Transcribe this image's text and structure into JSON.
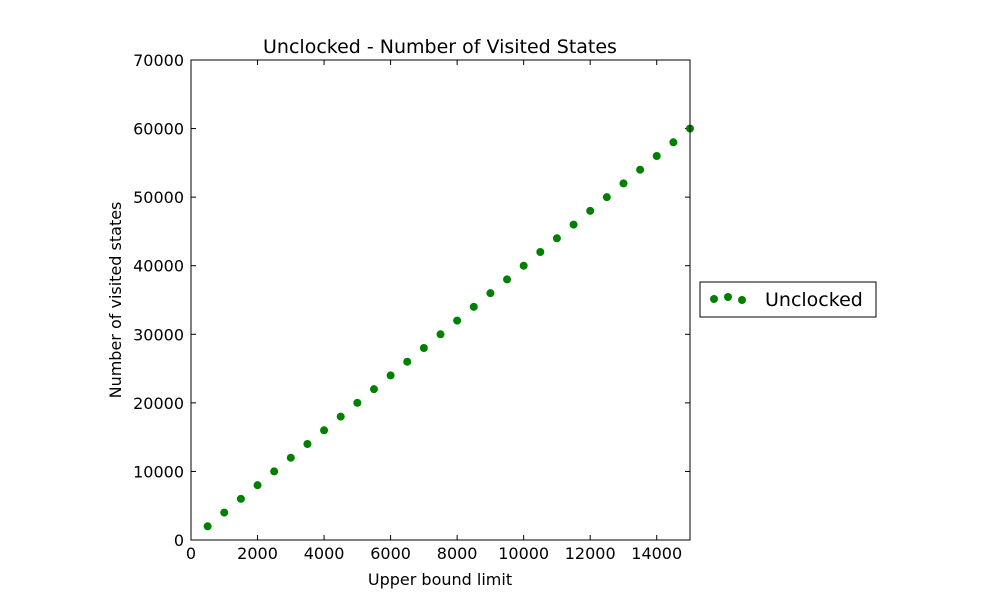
{
  "chart_data": {
    "type": "scatter",
    "title": "Unclocked - Number of Visited States",
    "xlabel": "Upper bound limit",
    "ylabel": "Number of visited states",
    "xlim": [
      0,
      15000
    ],
    "ylim": [
      0,
      70000
    ],
    "xticks": [
      0,
      2000,
      4000,
      6000,
      8000,
      10000,
      12000,
      14000
    ],
    "yticks": [
      0,
      10000,
      20000,
      30000,
      40000,
      50000,
      60000,
      70000
    ],
    "xtick_labels": [
      "0",
      "2000",
      "4000",
      "6000",
      "8000",
      "10000",
      "12000",
      "14000"
    ],
    "ytick_labels": [
      "0",
      "10000",
      "20000",
      "30000",
      "40000",
      "50000",
      "60000",
      "70000"
    ],
    "grid": false,
    "legend_position": "right, outside plot",
    "series": [
      {
        "name": "Unclocked",
        "color": "#008000",
        "marker": "circle",
        "x": [
          500,
          1000,
          1500,
          2000,
          2500,
          3000,
          3500,
          4000,
          4500,
          5000,
          5500,
          6000,
          6500,
          7000,
          7500,
          8000,
          8500,
          9000,
          9500,
          10000,
          10500,
          11000,
          11500,
          12000,
          12500,
          13000,
          13500,
          14000,
          14500,
          15000
        ],
        "y": [
          2000,
          4000,
          6000,
          8000,
          10000,
          12000,
          14000,
          16000,
          18000,
          20000,
          22000,
          24000,
          26000,
          28000,
          30000,
          32000,
          34000,
          36000,
          38000,
          40000,
          42000,
          44000,
          46000,
          48000,
          50000,
          52000,
          54000,
          56000,
          58000,
          60000
        ]
      }
    ]
  }
}
